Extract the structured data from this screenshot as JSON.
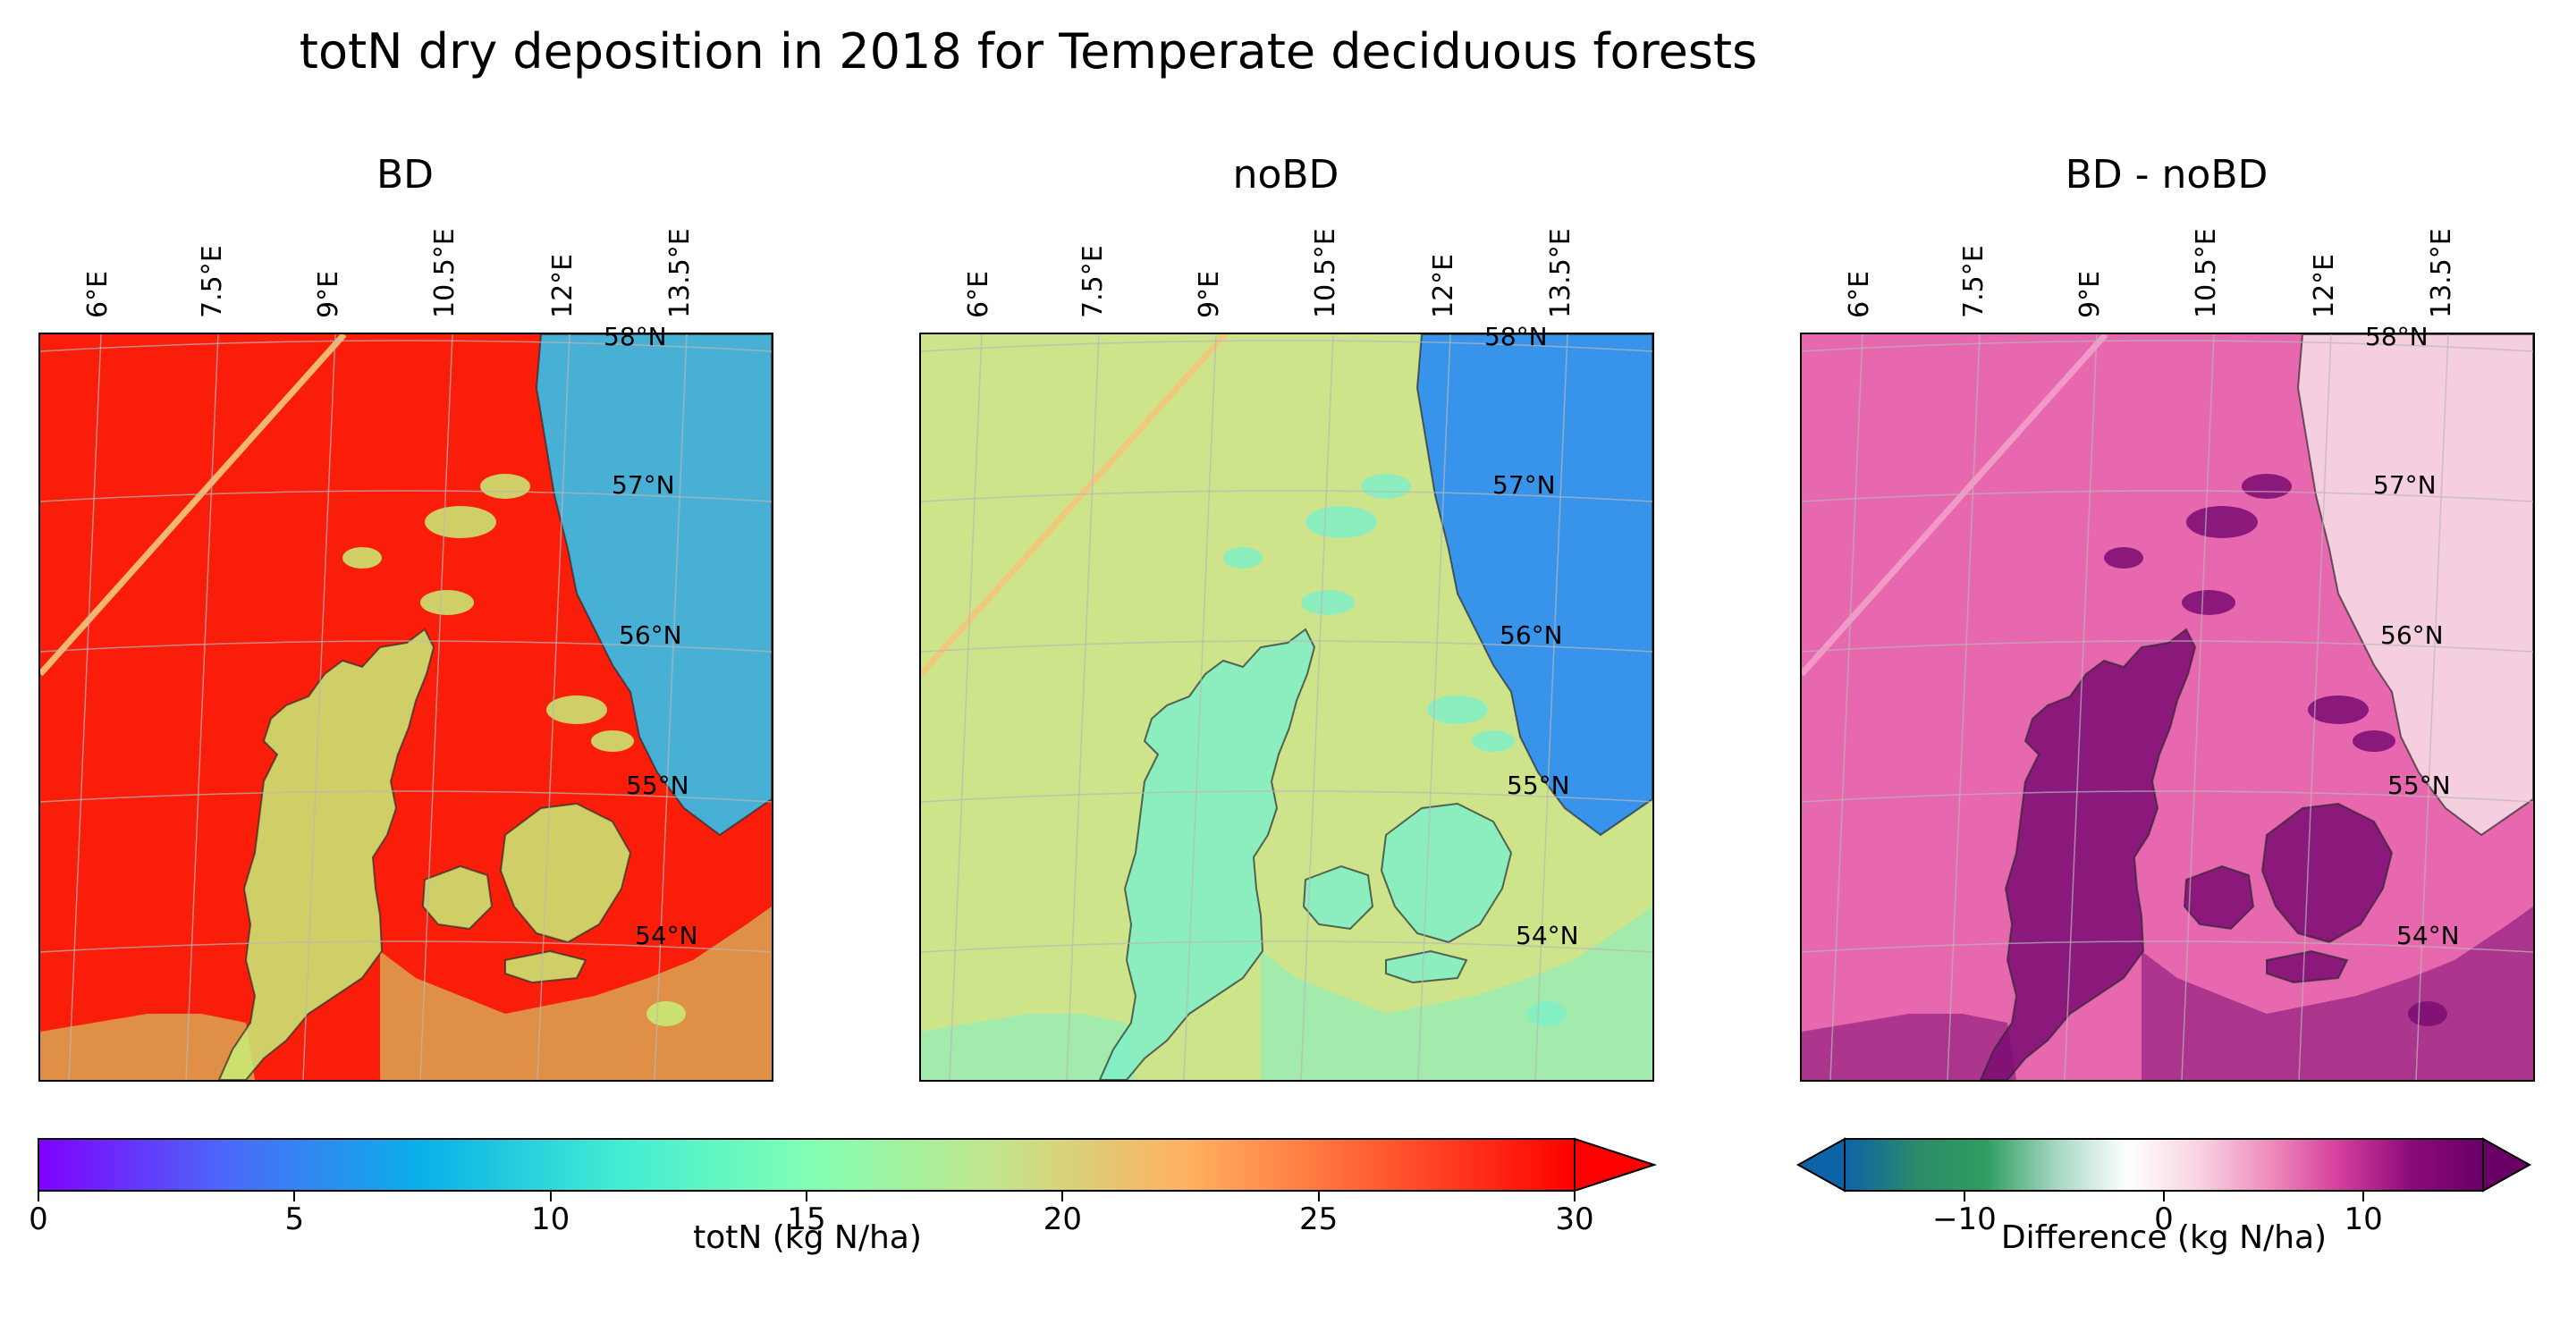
{
  "figure": {
    "title": "totN dry deposition in 2018 for Temperate deciduous forests"
  },
  "panels": [
    {
      "title": "BD",
      "sea_color": "#fa1e0a",
      "land_color": "#c8ee78",
      "north_color": "#3fb8e0",
      "scheme": "rainbow-high"
    },
    {
      "title": "noBD",
      "sea_color": "#cde48a",
      "land_color": "#80f0c8",
      "north_color": "#2f8ff0",
      "scheme": "rainbow-mid"
    },
    {
      "title": "BD - noBD",
      "sea_color": "#e868b0",
      "land_color": "#7a0c72",
      "north_color": "#f5d4e2",
      "scheme": "diff"
    }
  ],
  "longitude_labels": [
    "6°E",
    "7.5°E",
    "9°E",
    "10.5°E",
    "12°E",
    "13.5°E"
  ],
  "latitude_labels": [
    "58°N",
    "57°N",
    "56°N",
    "55°N",
    "54°N"
  ],
  "colorbars": [
    {
      "name": "totN",
      "label": "totN (kg N/ha)",
      "min": 0,
      "max": 30,
      "extend": "max",
      "ticks": [
        0,
        5,
        10,
        15,
        20,
        25,
        30
      ],
      "tick_labels": [
        "0",
        "5",
        "10",
        "15",
        "20",
        "25",
        "30"
      ],
      "colors": [
        "#8000ff",
        "#4a6bf8",
        "#0ab0e8",
        "#40ecd4",
        "#80ffb4",
        "#c4e48a",
        "#ffb060",
        "#ff5a30",
        "#ff0000"
      ]
    },
    {
      "name": "difference",
      "label": "Difference (kg N/ha)",
      "min": -16,
      "max": 16,
      "extend": "both",
      "ticks": [
        -10,
        0,
        10
      ],
      "tick_labels": [
        "−10",
        "0",
        "10"
      ],
      "colors": [
        "#0b63a8",
        "#2a8a6a",
        "#2f9e62",
        "#a8d8c4",
        "#ffffff",
        "#f8d2e2",
        "#ee8cbc",
        "#d43c9c",
        "#8a0a7a",
        "#6a0066"
      ]
    }
  ]
}
